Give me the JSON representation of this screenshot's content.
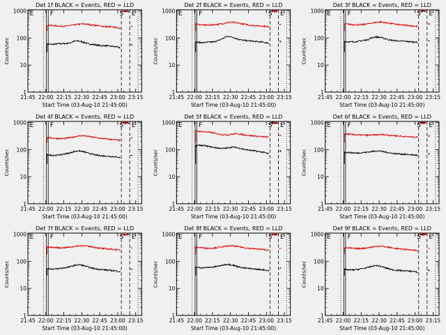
{
  "page": {
    "background": "#f0f0f0",
    "events_color": "#000000",
    "lld_color": "#dd0000"
  },
  "chart_data": [
    {
      "type": "line",
      "title": "Det 1f BLACK = Events, RED = LLD",
      "xlabel": "Start Time (03-Aug-10 21:45:00)",
      "ylabel": "Counts/sec",
      "xticks": [
        "21:45",
        "22:00",
        "22:15",
        "22:30",
        "22:45",
        "23:00",
        "23:15"
      ],
      "yticks": [
        "1",
        "10",
        "100",
        "1000"
      ],
      "yscale": "log",
      "ylim": [
        1,
        1100
      ],
      "markers": [
        "E",
        "F",
        "S",
        "E"
      ],
      "series": [
        {
          "name": "Events",
          "color": "#000000",
          "values": [
            60,
            58,
            60,
            62,
            62,
            65,
            75,
            78,
            70,
            62,
            58,
            55,
            52,
            52,
            50,
            48,
            45,
            35,
            55,
            58
          ]
        },
        {
          "name": "LLD",
          "color": "#dd0000",
          "values": [
            300,
            290,
            280,
            275,
            270,
            290,
            300,
            320,
            330,
            320,
            300,
            290,
            275,
            260,
            255,
            250,
            230,
            230,
            260,
            280
          ]
        }
      ]
    },
    {
      "type": "line",
      "title": "Det 2f BLACK = Events, RED = LLD",
      "xlabel": "Start Time (03-Aug-10 21:45:00)",
      "ylabel": "Counts/sec",
      "xticks": [
        "21:45",
        "22:00",
        "22:15",
        "22:30",
        "22:45",
        "23:00",
        "23:15"
      ],
      "yticks": [
        "1",
        "10",
        "100",
        "1000"
      ],
      "yscale": "log",
      "ylim": [
        1,
        1100
      ],
      "markers": [
        "E",
        "F",
        "S",
        "E"
      ],
      "series": [
        {
          "name": "Events",
          "color": "#000000",
          "values": [
            70,
            68,
            68,
            70,
            72,
            80,
            95,
            115,
            110,
            95,
            85,
            80,
            78,
            75,
            72,
            70,
            65,
            55,
            70,
            75
          ]
        },
        {
          "name": "LLD",
          "color": "#dd0000",
          "values": [
            320,
            310,
            300,
            300,
            310,
            320,
            340,
            370,
            380,
            360,
            340,
            320,
            300,
            290,
            280,
            275,
            260,
            270,
            300,
            320
          ]
        }
      ]
    },
    {
      "type": "line",
      "title": "Det 3f BLACK = Events, RED = LLD",
      "xlabel": "Start Time (03-Aug-10 21:45:00)",
      "ylabel": "Counts/sec",
      "xticks": [
        "21:45",
        "22:00",
        "22:15",
        "22:30",
        "22:45",
        "23:00",
        "23:15"
      ],
      "yticks": [
        "1",
        "10",
        "100",
        "1000"
      ],
      "yscale": "log",
      "ylim": [
        1,
        1100
      ],
      "markers": [
        "E",
        "F",
        "S",
        "E"
      ],
      "series": [
        {
          "name": "Events",
          "color": "#000000",
          "values": [
            75,
            72,
            72,
            75,
            80,
            85,
            100,
            110,
            105,
            95,
            85,
            80,
            78,
            76,
            74,
            72,
            70,
            60,
            72,
            76
          ]
        },
        {
          "name": "LLD",
          "color": "#dd0000",
          "values": [
            330,
            320,
            310,
            305,
            310,
            330,
            350,
            380,
            390,
            370,
            350,
            330,
            310,
            300,
            290,
            280,
            270,
            280,
            310,
            330
          ]
        }
      ]
    },
    {
      "type": "line",
      "title": "Det 4f BLACK = Events, RED = LLD",
      "xlabel": "Start Time (03-Aug-10 21:45:00)",
      "ylabel": "Counts/sec",
      "xticks": [
        "21:45",
        "22:00",
        "22:15",
        "22:30",
        "22:45",
        "23:00",
        "23:15"
      ],
      "yticks": [
        "1",
        "10",
        "100",
        "1000"
      ],
      "yscale": "log",
      "ylim": [
        1,
        1100
      ],
      "markers": [
        "E",
        "F",
        "S",
        "E"
      ],
      "series": [
        {
          "name": "Events",
          "color": "#000000",
          "values": [
            65,
            62,
            62,
            65,
            70,
            75,
            85,
            90,
            85,
            75,
            68,
            62,
            60,
            58,
            56,
            55,
            52,
            42,
            60,
            64
          ]
        },
        {
          "name": "LLD",
          "color": "#dd0000",
          "values": [
            280,
            270,
            260,
            255,
            260,
            275,
            295,
            320,
            330,
            310,
            290,
            275,
            260,
            250,
            240,
            235,
            220,
            230,
            260,
            280
          ]
        }
      ]
    },
    {
      "type": "line",
      "title": "Det 5f BLACK = Events, RED = LLD",
      "xlabel": "Start Time (03-Aug-10 21:45:00)",
      "ylabel": "Counts/sec",
      "xticks": [
        "21:45",
        "22:00",
        "22:15",
        "22:30",
        "22:45",
        "23:00",
        "23:15"
      ],
      "yticks": [
        "1",
        "10",
        "100",
        "1000"
      ],
      "yscale": "log",
      "ylim": [
        1,
        1100
      ],
      "markers": [
        "E",
        "F",
        "S",
        "E"
      ],
      "series": [
        {
          "name": "Events",
          "color": "#000000",
          "values": [
            140,
            145,
            140,
            130,
            120,
            115,
            110,
            115,
            125,
            120,
            110,
            100,
            95,
            90,
            85,
            80,
            72,
            65,
            85,
            90
          ]
        },
        {
          "name": "LLD",
          "color": "#dd0000",
          "values": [
            480,
            470,
            460,
            440,
            410,
            380,
            360,
            350,
            370,
            390,
            370,
            350,
            330,
            320,
            310,
            300,
            290,
            300,
            330,
            350
          ]
        }
      ]
    },
    {
      "type": "line",
      "title": "Det 6f BLACK = Events, RED = LLD",
      "xlabel": "Start Time (03-Aug-10 21:45:00)",
      "ylabel": "Counts/sec",
      "xticks": [
        "21:45",
        "22:00",
        "22:15",
        "22:30",
        "22:45",
        "23:00",
        "23:15"
      ],
      "yticks": [
        "1",
        "10",
        "100",
        "1000"
      ],
      "yscale": "log",
      "ylim": [
        1,
        1100
      ],
      "markers": [
        "E",
        "F",
        "S",
        "E"
      ],
      "series": [
        {
          "name": "Events",
          "color": "#000000",
          "values": [
            80,
            78,
            76,
            75,
            78,
            80,
            85,
            90,
            88,
            82,
            76,
            72,
            70,
            68,
            66,
            65,
            62,
            55,
            68,
            72
          ]
        },
        {
          "name": "LLD",
          "color": "#dd0000",
          "values": [
            380,
            370,
            360,
            350,
            345,
            340,
            345,
            350,
            360,
            355,
            340,
            330,
            320,
            310,
            300,
            295,
            285,
            290,
            310,
            320
          ]
        }
      ]
    },
    {
      "type": "line",
      "title": "Det 7f BLACK = Events, RED = LLD",
      "xlabel": "Start Time (03-Aug-10 21:45:00)",
      "ylabel": "Counts/sec",
      "xticks": [
        "21:45",
        "22:00",
        "22:15",
        "22:30",
        "22:45",
        "23:00",
        "23:15"
      ],
      "yticks": [
        "1",
        "10",
        "100",
        "1000"
      ],
      "yscale": "log",
      "ylim": [
        1,
        1100
      ],
      "markers": [
        "E",
        "F",
        "S",
        "E"
      ],
      "series": [
        {
          "name": "Events",
          "color": "#000000",
          "values": [
            55,
            52,
            52,
            55,
            58,
            62,
            70,
            75,
            70,
            62,
            56,
            52,
            50,
            48,
            46,
            45,
            42,
            35,
            48,
            52
          ]
        },
        {
          "name": "LLD",
          "color": "#dd0000",
          "values": [
            340,
            330,
            320,
            315,
            320,
            335,
            350,
            370,
            380,
            360,
            340,
            320,
            300,
            290,
            280,
            275,
            260,
            265,
            290,
            310
          ]
        }
      ]
    },
    {
      "type": "line",
      "title": "Det 8f BLACK = Events, RED = LLD",
      "xlabel": "Start Time (03-Aug-10 21:45:00)",
      "ylabel": "Counts/sec",
      "xticks": [
        "21:45",
        "22:00",
        "22:15",
        "22:30",
        "22:45",
        "23:00",
        "23:15"
      ],
      "yticks": [
        "1",
        "10",
        "100",
        "1000"
      ],
      "yscale": "log",
      "ylim": [
        1,
        1100
      ],
      "markers": [
        "E",
        "F",
        "S",
        "E"
      ],
      "series": [
        {
          "name": "Events",
          "color": "#000000",
          "values": [
            60,
            58,
            58,
            60,
            62,
            66,
            72,
            78,
            74,
            66,
            60,
            56,
            54,
            52,
            50,
            49,
            46,
            38,
            52,
            56
          ]
        },
        {
          "name": "LLD",
          "color": "#dd0000",
          "values": [
            330,
            320,
            310,
            305,
            310,
            325,
            345,
            365,
            375,
            355,
            335,
            315,
            300,
            290,
            280,
            272,
            258,
            262,
            290,
            310
          ]
        }
      ]
    },
    {
      "type": "line",
      "title": "Det 9f BLACK = Events, RED = LLD",
      "xlabel": "Start Time (03-Aug-10 21:45:00)",
      "ylabel": "Counts/sec",
      "xticks": [
        "21:45",
        "22:00",
        "22:15",
        "22:30",
        "22:45",
        "23:00",
        "23:15"
      ],
      "yticks": [
        "1",
        "10",
        "100",
        "1000"
      ],
      "yscale": "log",
      "ylim": [
        1,
        1100
      ],
      "markers": [
        "E",
        "F",
        "S",
        "E"
      ],
      "series": [
        {
          "name": "Events",
          "color": "#000000",
          "values": [
            50,
            48,
            48,
            50,
            54,
            58,
            64,
            70,
            66,
            58,
            52,
            48,
            46,
            45,
            44,
            43,
            40,
            34,
            45,
            48
          ]
        },
        {
          "name": "LLD",
          "color": "#dd0000",
          "values": [
            320,
            310,
            300,
            295,
            300,
            315,
            335,
            355,
            365,
            345,
            325,
            305,
            290,
            280,
            270,
            265,
            250,
            255,
            280,
            300
          ]
        }
      ]
    }
  ]
}
